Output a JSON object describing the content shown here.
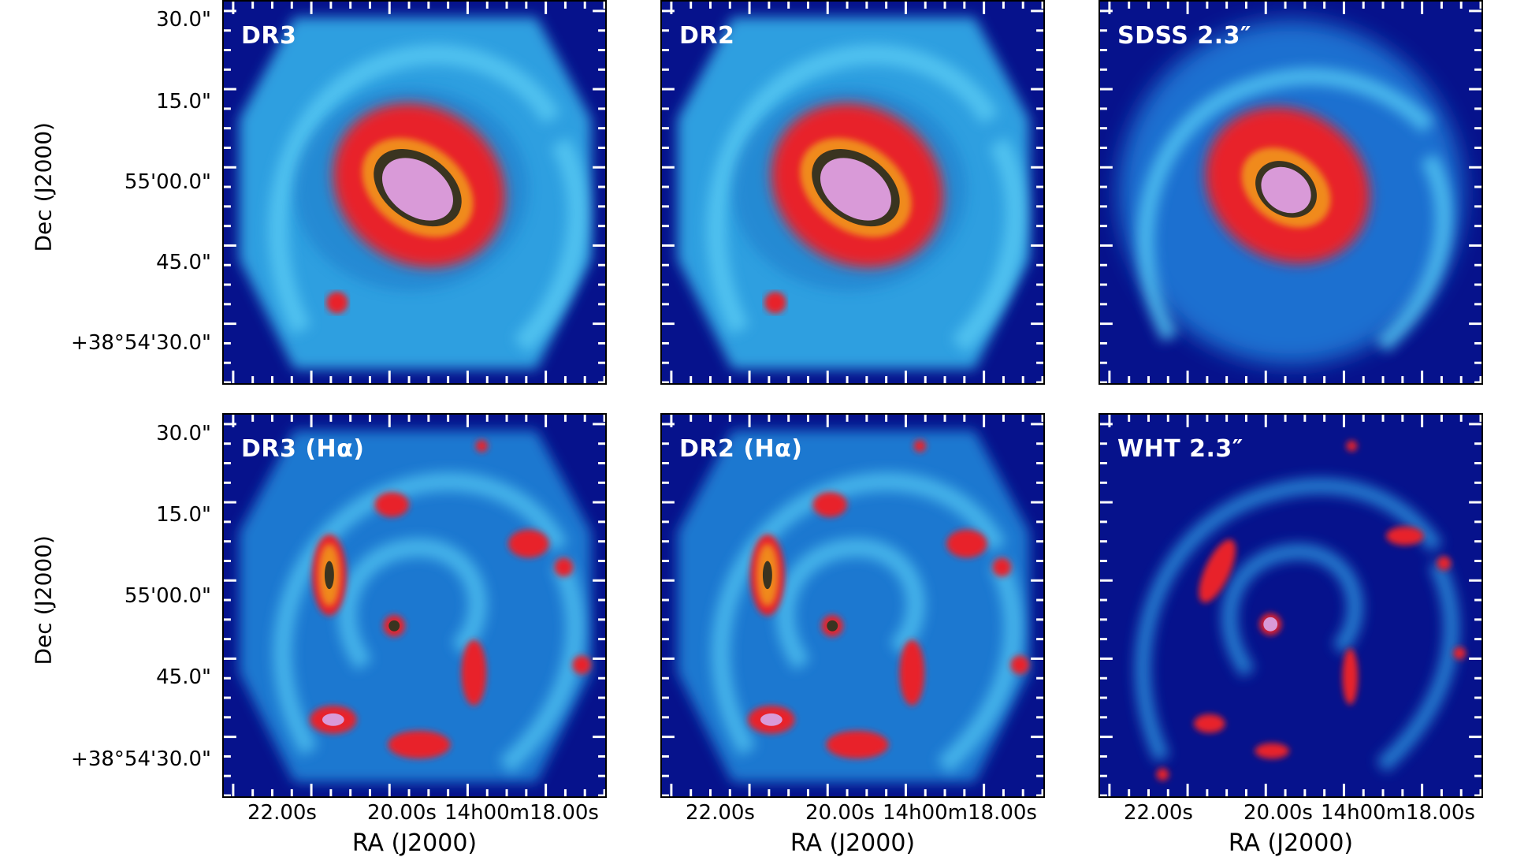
{
  "panels": [
    {
      "label": "DR3",
      "kind": "continuum"
    },
    {
      "label": "DR2",
      "kind": "continuum"
    },
    {
      "label": "SDSS 2.3″",
      "kind": "continuum-smooth"
    },
    {
      "label": "DR3 (Hα)",
      "kind": "halpha"
    },
    {
      "label": "DR2 (Hα)",
      "kind": "halpha"
    },
    {
      "label": "WHT 2.3″",
      "kind": "halpha-smooth"
    }
  ],
  "axes": {
    "y_label": "Dec (J2000)",
    "x_label": "RA (J2000)",
    "y_ticks": [
      "30.0\"",
      "15.0\"",
      "55'00.0\"",
      "45.0\"",
      "+38°54'30.0\""
    ],
    "x_ticks": [
      "22.00s",
      "20.00s",
      "14h00m18.00s"
    ]
  },
  "colors": {
    "background": "#06128c",
    "arm_blue": "#2ea8e8",
    "core_red": "#e8222a",
    "core_orange": "#f08a1a",
    "core_dark": "#3a3420",
    "core_pink": "#d99ad8"
  }
}
